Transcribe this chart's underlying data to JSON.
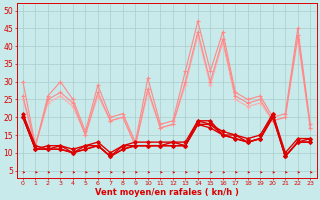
{
  "title": "",
  "xlabel": "Vent moyen/en rafales ( kn/h )",
  "background_color": "#c8eaea",
  "grid_color": "#aacccc",
  "x_ticks": [
    0,
    1,
    2,
    3,
    4,
    5,
    6,
    7,
    8,
    9,
    10,
    11,
    12,
    13,
    14,
    15,
    16,
    17,
    18,
    19,
    20,
    21,
    22,
    23
  ],
  "y_ticks": [
    5,
    10,
    15,
    20,
    25,
    30,
    35,
    40,
    45,
    50
  ],
  "ylim": [
    3,
    52
  ],
  "xlim": [
    -0.5,
    23.5
  ],
  "series": [
    {
      "values": [
        21,
        12,
        11,
        12,
        10,
        12,
        12,
        9,
        12,
        12,
        12,
        12,
        12,
        12,
        19,
        19,
        15,
        15,
        13,
        14,
        21,
        9,
        13,
        14
      ],
      "color": "#dd0000",
      "lw": 1.0,
      "marker": "D",
      "ms": 1.8,
      "zorder": 6
    },
    {
      "values": [
        20,
        11,
        11,
        11,
        10,
        11,
        12,
        9,
        11,
        12,
        12,
        12,
        12,
        12,
        18,
        18,
        15,
        14,
        13,
        14,
        20,
        9,
        13,
        13
      ],
      "color": "#dd0000",
      "lw": 1.0,
      "marker": "D",
      "ms": 1.8,
      "zorder": 6
    },
    {
      "values": [
        20,
        11,
        11,
        11,
        10,
        11,
        12,
        9,
        11,
        12,
        12,
        12,
        13,
        12,
        18,
        17,
        15,
        14,
        13,
        14,
        20,
        9,
        13,
        13
      ],
      "color": "#dd0000",
      "lw": 1.0,
      "marker": "D",
      "ms": 1.8,
      "zorder": 6
    },
    {
      "values": [
        20,
        11,
        12,
        12,
        11,
        12,
        13,
        10,
        12,
        13,
        13,
        13,
        13,
        13,
        19,
        18,
        16,
        15,
        14,
        15,
        21,
        10,
        14,
        14
      ],
      "color": "#dd0000",
      "lw": 1.0,
      "marker": "D",
      "ms": 1.8,
      "zorder": 6
    },
    {
      "values": [
        30,
        12,
        26,
        30,
        25,
        16,
        29,
        20,
        21,
        13,
        31,
        18,
        19,
        33,
        47,
        33,
        44,
        27,
        25,
        26,
        20,
        21,
        45,
        18
      ],
      "color": "#ff8888",
      "lw": 0.8,
      "marker": "+",
      "ms": 3.5,
      "zorder": 3
    },
    {
      "values": [
        26,
        12,
        25,
        27,
        24,
        15,
        27,
        19,
        20,
        12,
        28,
        17,
        18,
        30,
        44,
        30,
        42,
        26,
        24,
        25,
        19,
        20,
        43,
        17
      ],
      "color": "#ff8888",
      "lw": 0.8,
      "marker": "+",
      "ms": 3.5,
      "zorder": 3
    },
    {
      "values": [
        25,
        12,
        24,
        26,
        23,
        15,
        26,
        19,
        20,
        12,
        27,
        17,
        18,
        29,
        43,
        29,
        41,
        25,
        23,
        24,
        19,
        20,
        42,
        17
      ],
      "color": "#ffaaaa",
      "lw": 0.8,
      "marker": "+",
      "ms": 3.5,
      "zorder": 2
    }
  ],
  "arrow_color": "#dd0000",
  "xlabel_color": "#dd0000",
  "tick_color": "#dd0000",
  "spine_color": "#dd0000"
}
